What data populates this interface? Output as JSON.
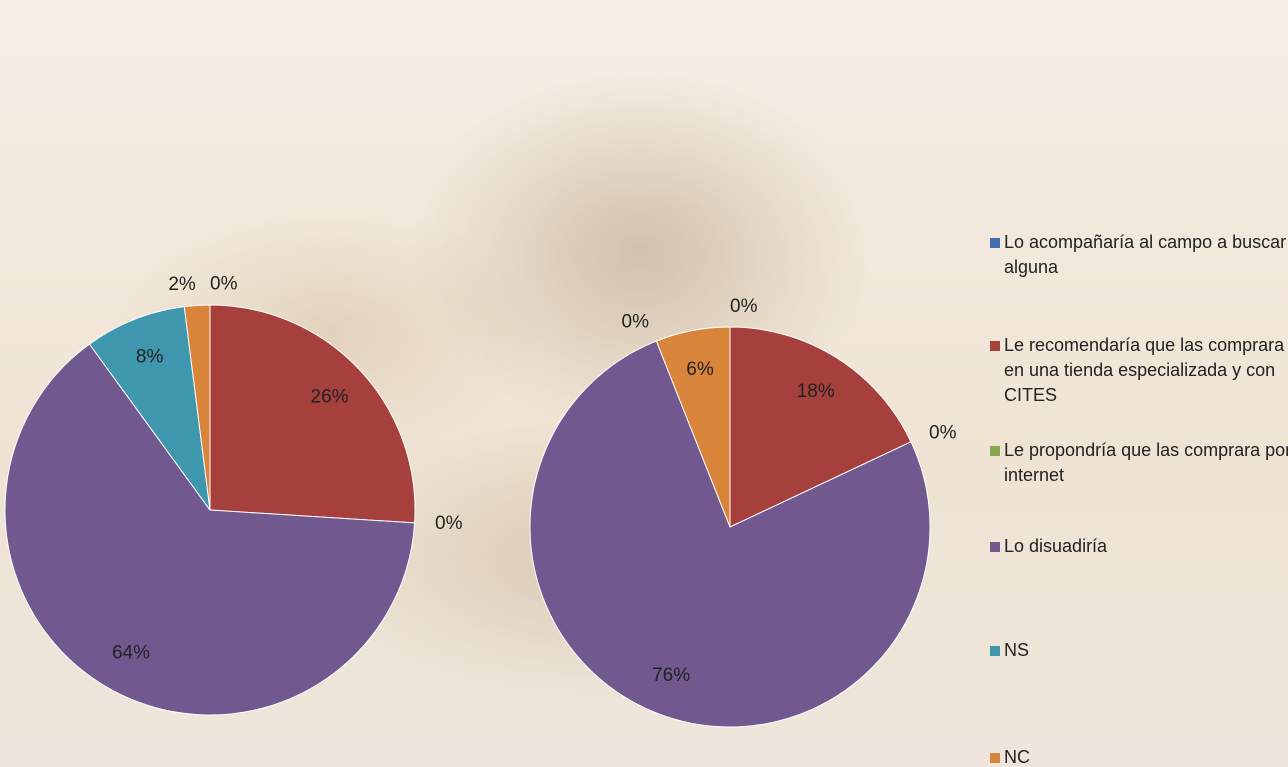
{
  "legend": {
    "categories": [
      "Lo acompañaría al campo a buscar alguna",
      "Le recomendaría que las comprara en una tienda especializada y con CITES",
      "Le propondría que las comprara por internet",
      "Lo disuadiría",
      "NS",
      "NC"
    ],
    "colors": [
      "#3f70ad",
      "#a5403d",
      "#86a84b",
      "#71588f",
      "#3f97ae",
      "#d9843b"
    ]
  },
  "chart_data": [
    {
      "type": "pie",
      "values": [
        0,
        26,
        0,
        64,
        8,
        2
      ],
      "value_labels": [
        "0%",
        "26%",
        "0%",
        "64%",
        "8%",
        "2%"
      ]
    },
    {
      "type": "pie",
      "values": [
        0,
        18,
        0,
        76,
        0,
        6
      ],
      "value_labels": [
        "0%",
        "18%",
        "0%",
        "76%",
        "0%",
        "6%"
      ]
    }
  ]
}
